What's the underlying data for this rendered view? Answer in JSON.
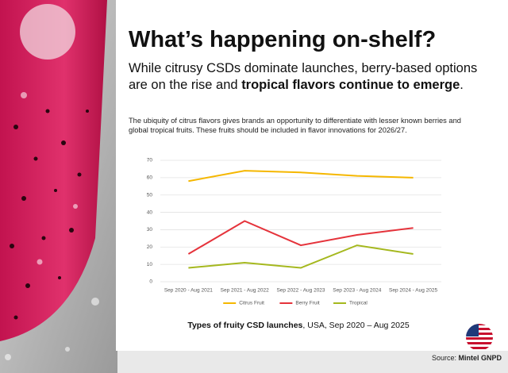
{
  "header": {
    "title": "What’s happening on-shelf?",
    "subtitle_parts": [
      "While citrusy CSDs dominate launches, berry-based options are on the rise and ",
      "tropical flavors continue to emerge",
      "."
    ],
    "body": "The ubiquity of citrus flavors gives brands an opportunity to differentiate with lesser known berries and global tropical fruits. These fruits should be included in flavor innovations for 2026/27."
  },
  "chart_data": {
    "type": "line",
    "categories": [
      "Sep 2020 - Aug 2021",
      "Sep 2021 - Aug 2022",
      "Sep 2022 - Aug 2023",
      "Sep 2023 - Aug 2024",
      "Sep 2024 - Aug 2025"
    ],
    "series": [
      {
        "name": "Citrus Fruit",
        "color": "#f5b700",
        "values": [
          58,
          64,
          63,
          61,
          60
        ]
      },
      {
        "name": "Berry Fruit",
        "color": "#e5333b",
        "values": [
          16,
          35,
          21,
          27,
          31
        ]
      },
      {
        "name": "Tropical",
        "color": "#a5b81e",
        "values": [
          8,
          11,
          8,
          21,
          16
        ]
      }
    ],
    "ylim": [
      0,
      70
    ],
    "yticks": [
      0,
      10,
      20,
      30,
      40,
      50,
      60,
      70
    ],
    "grid": true,
    "legend": "bottom"
  },
  "caption_parts": [
    "Types of fruity CSD launches",
    ", USA, Sep 2020 – Aug 2025"
  ],
  "source_parts": [
    "Source: ",
    "Mintel GNPD"
  ]
}
